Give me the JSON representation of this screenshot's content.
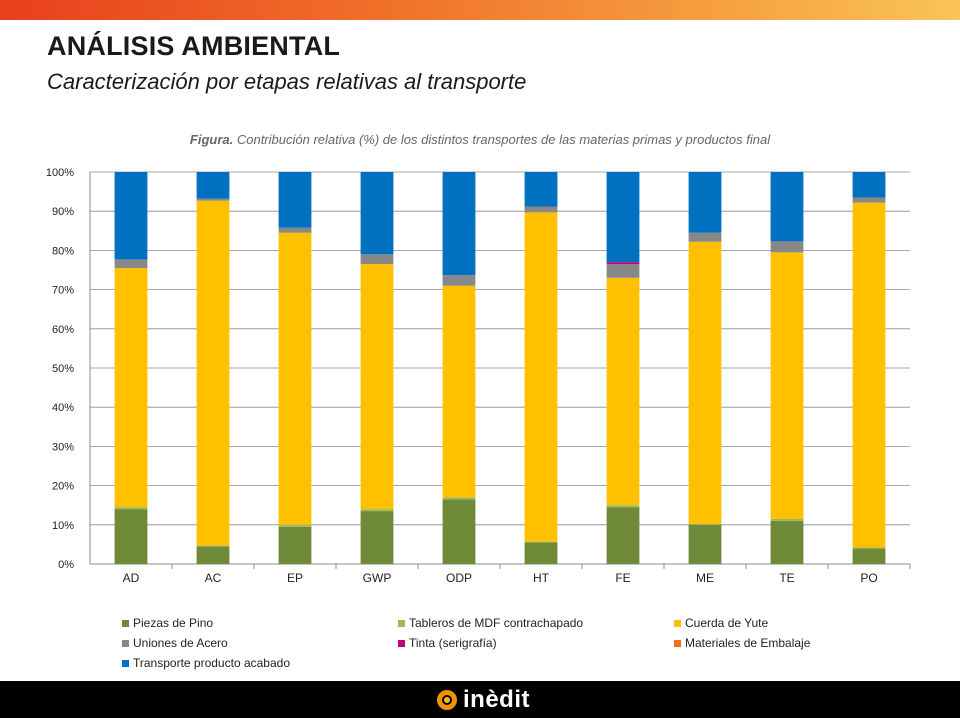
{
  "header": {
    "title": "ANÁLISIS AMBIENTAL",
    "subtitle": "Caracterización por etapas relativas al transporte"
  },
  "caption": {
    "bold": "Figura.",
    "text": " Contribución relativa (%) de los distintos transportes de las materias primas y productos final"
  },
  "brand": {
    "logo_text": "inèdit"
  },
  "chart_data": {
    "type": "bar",
    "stacked": true,
    "title": "Contribución relativa (%) de los distintos transportes de las materias primas y productos final",
    "xlabel": "",
    "ylabel": "",
    "ylim": [
      0,
      100
    ],
    "ytick_labels": [
      "0%",
      "10%",
      "20%",
      "30%",
      "40%",
      "50%",
      "60%",
      "70%",
      "80%",
      "90%",
      "100%"
    ],
    "grid": true,
    "legend_position": "bottom",
    "categories": [
      "AD",
      "AC",
      "EP",
      "GWP",
      "ODP",
      "HT",
      "FE",
      "ME",
      "TE",
      "PO"
    ],
    "series": [
      {
        "name": "Piezas de Pino",
        "color": "#6f8b3a",
        "values": [
          14,
          4.5,
          9.5,
          13.5,
          16.5,
          5.5,
          14.5,
          10,
          11,
          4
        ]
      },
      {
        "name": "Tableros de MDF contrachapado",
        "color": "#9bbb59",
        "values": [
          0.5,
          0.2,
          0.5,
          0.5,
          0.5,
          0.2,
          0.5,
          0.2,
          0.5,
          0.2
        ]
      },
      {
        "name": "Cuerda de Yute",
        "color": "#ffc000",
        "values": [
          61,
          88,
          74.5,
          62.5,
          54,
          84,
          58,
          72,
          68,
          88
        ]
      },
      {
        "name": "Uniones de Acero",
        "color": "#888888",
        "values": [
          2.2,
          0.5,
          1.3,
          2.5,
          2.7,
          1.5,
          3.5,
          2.3,
          2.8,
          1.3
        ]
      },
      {
        "name": "Tinta (serigrafía)",
        "color": "#c0007a",
        "values": [
          0,
          0,
          0,
          0,
          0,
          0,
          0.5,
          0,
          0,
          0
        ]
      },
      {
        "name": "Materiales de Embalaje",
        "color": "#f07020",
        "values": [
          0,
          0,
          0,
          0,
          0,
          0,
          0,
          0,
          0,
          0
        ]
      },
      {
        "name": "Transporte producto acabado",
        "color": "#0070c0",
        "values": [
          22.3,
          6.8,
          14.2,
          21,
          26.3,
          8.8,
          23,
          15.5,
          17.7,
          6.5
        ]
      }
    ]
  }
}
